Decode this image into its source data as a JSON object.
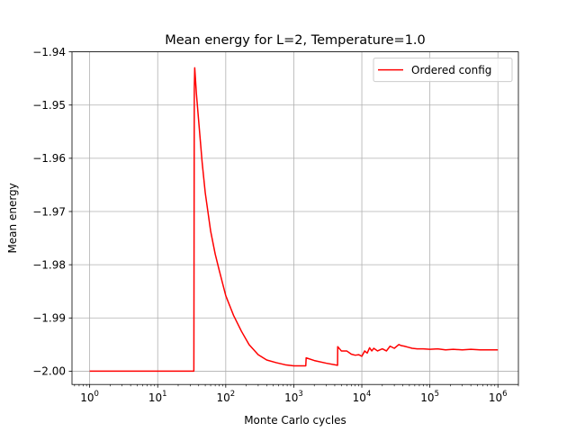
{
  "chart_data": {
    "type": "line",
    "title": "Mean energy for L=2, Temperature=1.0",
    "xlabel": "Monte Carlo cycles",
    "ylabel": "Mean energy",
    "xscale": "log",
    "xlim": [
      0.55,
      2000000
    ],
    "ylim": [
      -2.0025,
      -1.94
    ],
    "grid": true,
    "legend_position": "top-right",
    "x_ticks": [
      {
        "value": 1,
        "base": "10",
        "exp": "0"
      },
      {
        "value": 10,
        "base": "10",
        "exp": "1"
      },
      {
        "value": 100,
        "base": "10",
        "exp": "2"
      },
      {
        "value": 1000,
        "base": "10",
        "exp": "3"
      },
      {
        "value": 10000,
        "base": "10",
        "exp": "4"
      },
      {
        "value": 100000,
        "base": "10",
        "exp": "5"
      },
      {
        "value": 1000000,
        "base": "10",
        "exp": "6"
      }
    ],
    "y_ticks": [
      {
        "value": -1.94,
        "label": "−1.94"
      },
      {
        "value": -1.95,
        "label": "−1.95"
      },
      {
        "value": -1.96,
        "label": "−1.96"
      },
      {
        "value": -1.97,
        "label": "−1.97"
      },
      {
        "value": -1.98,
        "label": "−1.98"
      },
      {
        "value": -1.99,
        "label": "−1.99"
      },
      {
        "value": -2.0,
        "label": "−2.00"
      }
    ],
    "series": [
      {
        "name": "Ordered config",
        "color": "#ff0000",
        "x": [
          1,
          5,
          20,
          34,
          34.5,
          35,
          37,
          40,
          45,
          50,
          60,
          70,
          80,
          100,
          130,
          170,
          220,
          300,
          400,
          550,
          750,
          1000,
          1300,
          1500,
          1520,
          2000,
          3000,
          4400,
          4420,
          4500,
          5000,
          6000,
          7000,
          8000,
          9000,
          10000,
          11000,
          12000,
          13000,
          14000,
          15000,
          17000,
          20000,
          23000,
          26000,
          30000,
          35000,
          38000,
          42000,
          48000,
          55000,
          65000,
          80000,
          100000,
          130000,
          170000,
          220000,
          300000,
          400000,
          550000,
          750000,
          1000000
        ],
        "y": [
          -2.0,
          -2.0,
          -2.0,
          -2.0,
          -1.947,
          -1.943,
          -1.9478,
          -1.953,
          -1.9608,
          -1.9665,
          -1.9737,
          -1.978,
          -1.981,
          -1.9858,
          -1.9895,
          -1.9925,
          -1.995,
          -1.9969,
          -1.9979,
          -1.9984,
          -1.9988,
          -1.999,
          -1.999,
          -1.999,
          -1.9975,
          -1.998,
          -1.9985,
          -1.9989,
          -1.9954,
          -1.9955,
          -1.9962,
          -1.9962,
          -1.9968,
          -1.997,
          -1.9969,
          -1.9972,
          -1.9962,
          -1.9966,
          -1.9956,
          -1.9962,
          -1.9957,
          -1.9962,
          -1.9958,
          -1.9962,
          -1.9953,
          -1.9957,
          -1.995,
          -1.9952,
          -1.9953,
          -1.9955,
          -1.9957,
          -1.9958,
          -1.9958,
          -1.9959,
          -1.9958,
          -1.996,
          -1.9959,
          -1.996,
          -1.9959,
          -1.996,
          -1.996,
          -1.996
        ]
      }
    ]
  }
}
